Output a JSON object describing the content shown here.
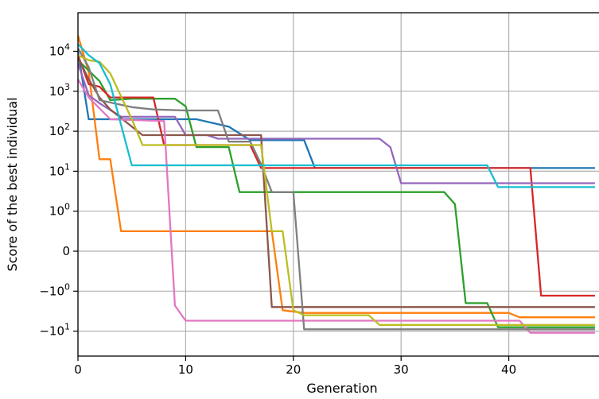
{
  "chart_data": {
    "type": "line",
    "title": "",
    "xlabel": "Generation",
    "ylabel": "Score of the best individual",
    "xlim": [
      0,
      48
    ],
    "x_ticks": [
      0,
      10,
      20,
      30,
      40
    ],
    "y_scale": "symlog",
    "y_ticks": [
      {
        "value": 10000,
        "base": "10",
        "exp": "4"
      },
      {
        "value": 1000,
        "base": "10",
        "exp": "3"
      },
      {
        "value": 100,
        "base": "10",
        "exp": "2"
      },
      {
        "value": 10,
        "base": "10",
        "exp": "1"
      },
      {
        "value": 1,
        "base": "10",
        "exp": "0"
      },
      {
        "value": 0,
        "base": "0",
        "exp": ""
      },
      {
        "value": -1,
        "base": "−10",
        "exp": "0"
      },
      {
        "value": -10,
        "base": "−10",
        "exp": "1"
      }
    ],
    "grid": true,
    "series": [
      {
        "color": "#1f77b4",
        "points": [
          [
            0,
            10000
          ],
          [
            1,
            200
          ],
          [
            11,
            200
          ],
          [
            14,
            130
          ],
          [
            16,
            60
          ],
          [
            21,
            60
          ],
          [
            22,
            12
          ],
          [
            48,
            12
          ]
        ]
      },
      {
        "color": "#ff7f0e",
        "points": [
          [
            0,
            25000
          ],
          [
            1,
            3000
          ],
          [
            2,
            20
          ],
          [
            3,
            20
          ],
          [
            4,
            0.5
          ],
          [
            18,
            0.5
          ],
          [
            19,
            -3
          ],
          [
            21,
            -3.5
          ],
          [
            40,
            -3.5
          ],
          [
            41,
            -4.5
          ],
          [
            48,
            -4.5
          ]
        ]
      },
      {
        "color": "#2ca02c",
        "points": [
          [
            0,
            6000
          ],
          [
            2,
            1800
          ],
          [
            3,
            600
          ],
          [
            5,
            650
          ],
          [
            9,
            650
          ],
          [
            10,
            420
          ],
          [
            11,
            40
          ],
          [
            14,
            40
          ],
          [
            15,
            3
          ],
          [
            34,
            3
          ],
          [
            35,
            1.5
          ],
          [
            36,
            -2
          ],
          [
            38,
            -2
          ],
          [
            39,
            -8
          ],
          [
            48,
            -8
          ]
        ]
      },
      {
        "color": "#d62728",
        "points": [
          [
            0,
            8000
          ],
          [
            1,
            1500
          ],
          [
            2,
            1300
          ],
          [
            3,
            700
          ],
          [
            7,
            700
          ],
          [
            8,
            45
          ],
          [
            16,
            45
          ],
          [
            17,
            12
          ],
          [
            42,
            12
          ],
          [
            43,
            -1.3
          ],
          [
            48,
            -1.3
          ]
        ]
      },
      {
        "color": "#9467bd",
        "points": [
          [
            0,
            5000
          ],
          [
            1,
            800
          ],
          [
            2,
            500
          ],
          [
            4,
            230
          ],
          [
            9,
            230
          ],
          [
            10,
            80
          ],
          [
            12,
            80
          ],
          [
            13,
            65
          ],
          [
            28,
            65
          ],
          [
            29,
            40
          ],
          [
            30,
            5
          ],
          [
            48,
            5
          ]
        ]
      },
      {
        "color": "#8c564b",
        "points": [
          [
            0,
            7000
          ],
          [
            1,
            2000
          ],
          [
            2,
            700
          ],
          [
            3,
            350
          ],
          [
            6,
            80
          ],
          [
            17,
            80
          ],
          [
            18,
            -2.5
          ],
          [
            48,
            -2.5
          ]
        ]
      },
      {
        "color": "#e377c2",
        "points": [
          [
            0,
            2000
          ],
          [
            1,
            700
          ],
          [
            3,
            200
          ],
          [
            8,
            180
          ],
          [
            9,
            -2.3
          ],
          [
            10,
            -5.5
          ],
          [
            41,
            -5.5
          ],
          [
            42,
            -11
          ],
          [
            48,
            -11
          ]
        ]
      },
      {
        "color": "#7f7f7f",
        "points": [
          [
            0,
            12000
          ],
          [
            1,
            4000
          ],
          [
            2,
            600
          ],
          [
            5,
            400
          ],
          [
            7,
            350
          ],
          [
            10,
            330
          ],
          [
            13,
            330
          ],
          [
            14,
            55
          ],
          [
            16,
            55
          ],
          [
            17,
            15
          ],
          [
            18,
            3
          ],
          [
            20,
            3
          ],
          [
            21,
            -9
          ],
          [
            48,
            -9
          ]
        ]
      },
      {
        "color": "#bcbd22",
        "points": [
          [
            0,
            8000
          ],
          [
            1,
            6000
          ],
          [
            2,
            5500
          ],
          [
            3,
            2800
          ],
          [
            5,
            200
          ],
          [
            6,
            45
          ],
          [
            17,
            45
          ],
          [
            18,
            0.5
          ],
          [
            19,
            0.5
          ],
          [
            20,
            -3
          ],
          [
            21,
            -4
          ],
          [
            27,
            -4
          ],
          [
            28,
            -7
          ],
          [
            48,
            -7
          ]
        ]
      },
      {
        "color": "#17becf",
        "points": [
          [
            0,
            15000
          ],
          [
            1,
            8000
          ],
          [
            2,
            5000
          ],
          [
            3,
            1500
          ],
          [
            5,
            14
          ],
          [
            38,
            14
          ],
          [
            39,
            4
          ],
          [
            48,
            4
          ]
        ]
      }
    ]
  }
}
